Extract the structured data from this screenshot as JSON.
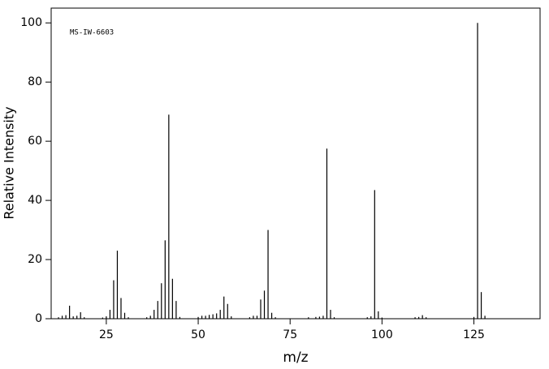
{
  "chart_data": {
    "type": "stem",
    "annotation": "MS-IW-6603",
    "xlabel": "m/z",
    "ylabel": "Relative Intensity",
    "x": [
      12,
      13,
      14,
      15,
      16,
      17,
      18,
      19,
      24,
      25,
      26,
      27,
      28,
      29,
      30,
      31,
      36,
      37,
      38,
      39,
      40,
      41,
      42,
      43,
      44,
      45,
      50,
      51,
      52,
      53,
      54,
      55,
      56,
      57,
      58,
      59,
      64,
      65,
      66,
      67,
      68,
      69,
      70,
      71,
      80,
      82,
      83,
      84,
      85,
      86,
      87,
      96,
      97,
      98,
      99,
      100,
      109,
      110,
      111,
      112,
      125,
      126,
      127,
      128
    ],
    "values": [
      0.5,
      1,
      1.2,
      4.4,
      0.8,
      1,
      2.2,
      0.5,
      0.4,
      0.8,
      3,
      13,
      23,
      7,
      2,
      0.5,
      0.5,
      1,
      3,
      6,
      12,
      26.5,
      69,
      13.5,
      6,
      0.6,
      0.6,
      1,
      1,
      1.3,
      1.5,
      1.8,
      3,
      7.5,
      5,
      0.8,
      0.5,
      1,
      1,
      6.5,
      9.5,
      30,
      2,
      0.5,
      0.5,
      0.6,
      0.7,
      1,
      57.5,
      3,
      0.5,
      0.5,
      0.8,
      43.5,
      2.5,
      0.4,
      0.5,
      0.6,
      1.2,
      0.5,
      0.6,
      100,
      9,
      1
    ],
    "color": "#000000",
    "xlim": [
      10,
      143
    ],
    "xticks": [
      25,
      50,
      75,
      100,
      125
    ],
    "ylim": [
      0,
      105
    ],
    "yticks": [
      0,
      20,
      40,
      60,
      80,
      100
    ]
  }
}
